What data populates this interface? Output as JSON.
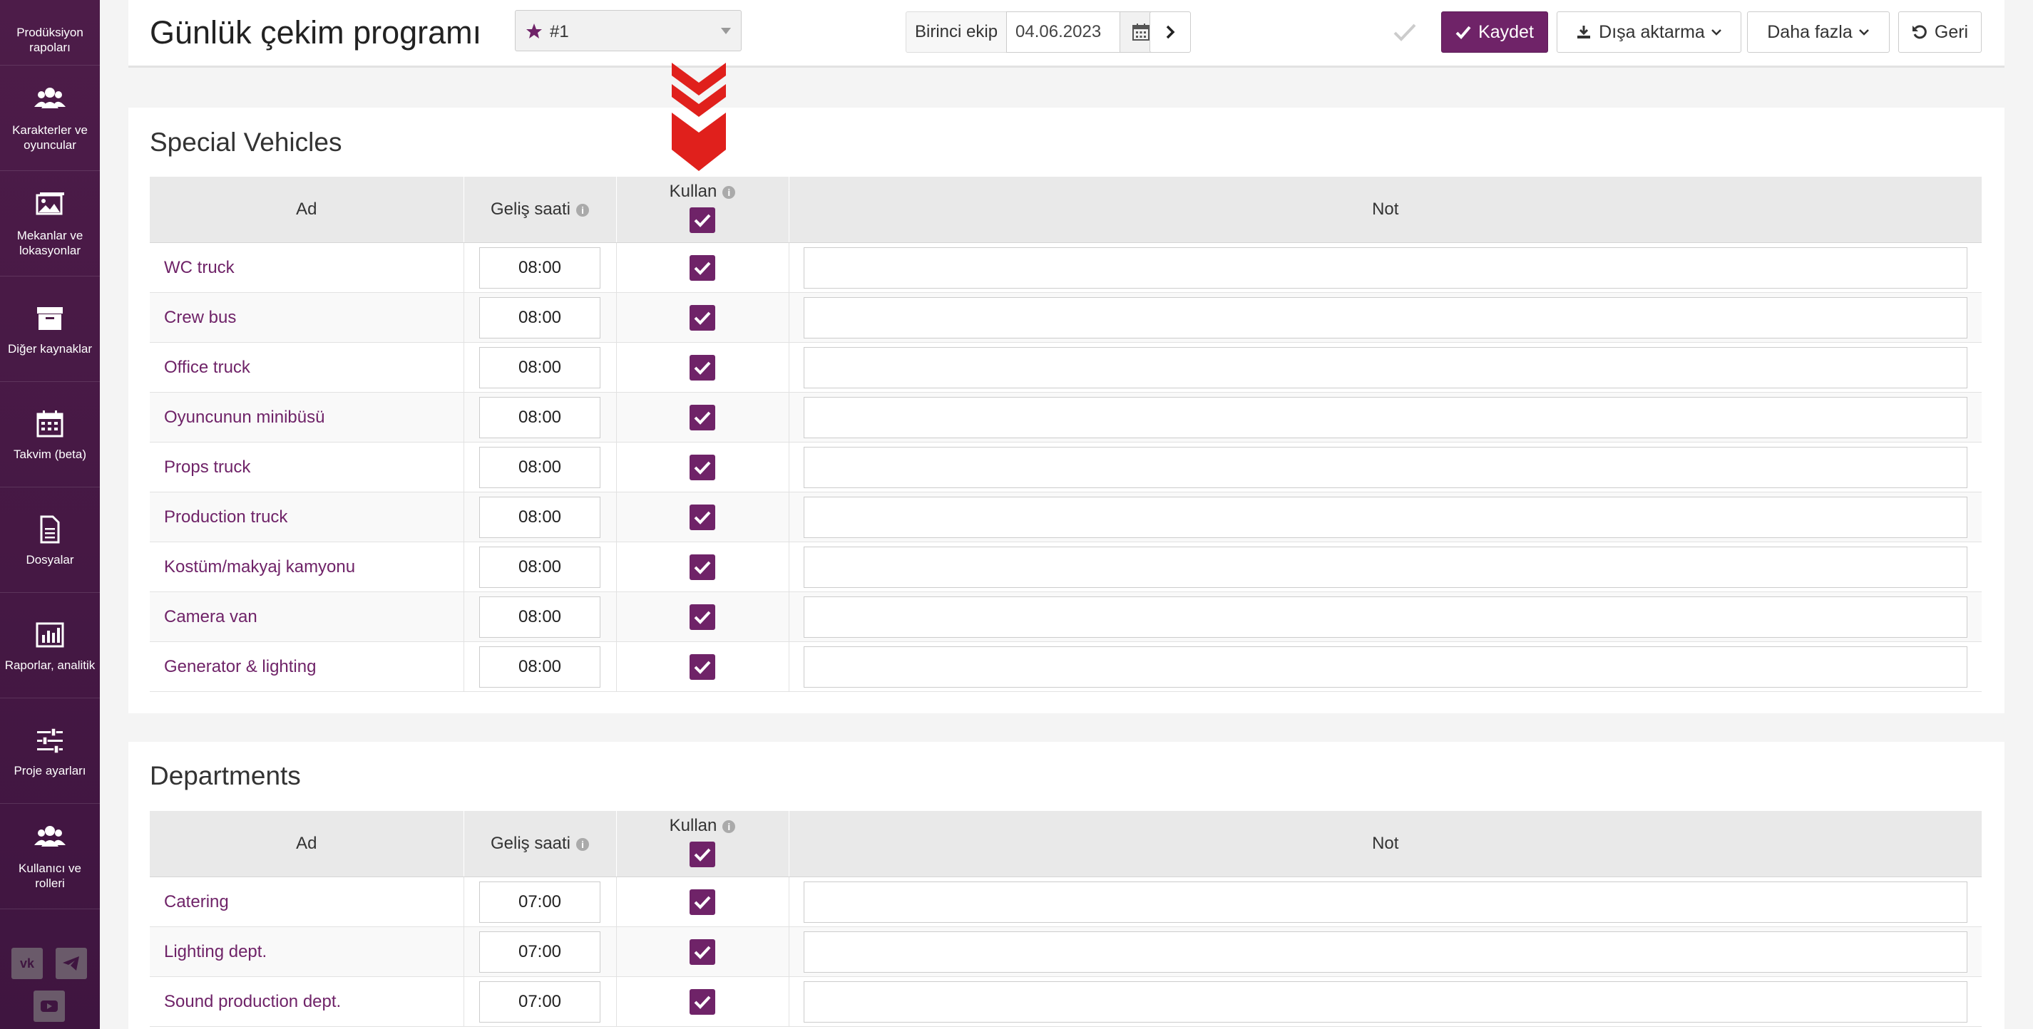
{
  "sidebar": {
    "top_label": "Prodüksiyon rapoları",
    "items": [
      {
        "label": "Karakterler ve oyuncular",
        "icon": "users-icon"
      },
      {
        "label": "Mekanlar ve lokasyonlar",
        "icon": "image-icon"
      },
      {
        "label": "Diğer kaynaklar",
        "icon": "archive-icon"
      },
      {
        "label": "Takvim (beta)",
        "icon": "calendar-icon"
      },
      {
        "label": "Dosyalar",
        "icon": "file-icon"
      },
      {
        "label": "Raporlar, analitik",
        "icon": "bar-chart-icon"
      },
      {
        "label": "Proje ayarları",
        "icon": "sliders-icon"
      },
      {
        "label": "Kullanıcı ve rolleri",
        "icon": "users-icon"
      }
    ]
  },
  "header": {
    "title": "Günlük çekim programı",
    "schedule_select": "#1",
    "crew_label": "Birinci ekip",
    "date": "04.06.2023",
    "save_label": "Kaydet",
    "export_label": "Dışa aktarma",
    "more_label": "Daha fazla",
    "back_label": "Geri"
  },
  "columns": {
    "name": "Ad",
    "arrival": "Geliş saati",
    "use": "Kullan",
    "note": "Not"
  },
  "special_vehicles": {
    "title": "Special Vehicles",
    "rows": [
      {
        "name": "WC truck",
        "time": "08:00"
      },
      {
        "name": "Crew bus",
        "time": "08:00"
      },
      {
        "name": "Office truck",
        "time": "08:00"
      },
      {
        "name": "Oyuncunun minibüsü",
        "time": "08:00"
      },
      {
        "name": "Props truck",
        "time": "08:00"
      },
      {
        "name": "Production truck",
        "time": "08:00"
      },
      {
        "name": "Kostüm/makyaj kamyonu",
        "time": "08:00"
      },
      {
        "name": "Camera van",
        "time": "08:00"
      },
      {
        "name": "Generator & lighting",
        "time": "08:00"
      }
    ]
  },
  "departments": {
    "title": "Departments",
    "rows": [
      {
        "name": "Catering",
        "time": "07:00"
      },
      {
        "name": "Lighting dept.",
        "time": "07:00"
      },
      {
        "name": "Sound production dept.",
        "time": "07:00"
      }
    ]
  },
  "colors": {
    "brand": "#6f2368",
    "sidebar": "#4a1a45",
    "arrow": "#e0201c"
  }
}
